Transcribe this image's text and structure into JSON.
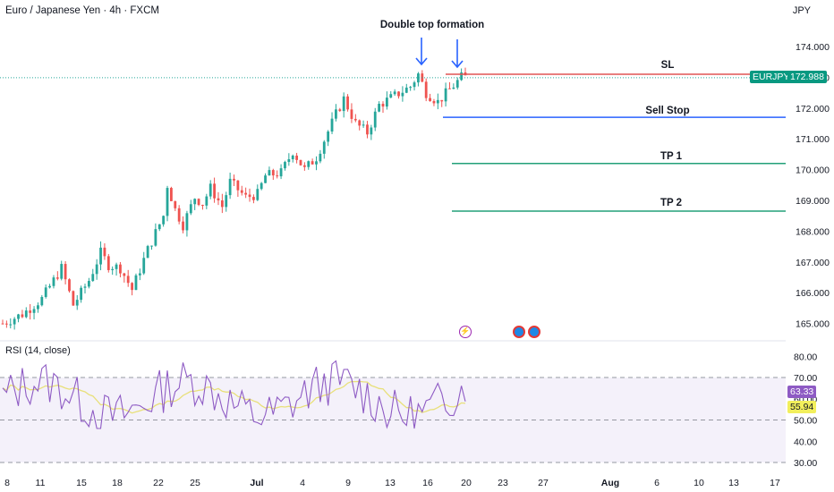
{
  "header": {
    "symbol_title": "Euro / Japanese Yen · 4h · FXCM",
    "currency": "JPY",
    "rsi_label": "RSI (14, close)"
  },
  "colors": {
    "up": "#26a69a",
    "down": "#ef5350",
    "sl_line": "#e05555",
    "sell_stop_line": "#2962ff",
    "tp_line": "#22a079",
    "rsi_line": "#8e5bc4",
    "rsi_ma": "#e8e07a",
    "rsi_band": "#ede7f6",
    "arrow": "#2962ff"
  },
  "annotations": {
    "double_top": "Double top formation",
    "sl": "SL",
    "sell_stop": "Sell Stop",
    "tp1": "TP 1",
    "tp2": "TP 2"
  },
  "price_badge": {
    "symbol": "EURJPY",
    "price": "172.988"
  },
  "rsi_badges": {
    "rsi": "63.33",
    "ma": "55.94"
  },
  "chart_data": {
    "type": "candlestick",
    "instrument": "EURJPY",
    "timeframe": "4h",
    "y_axis": {
      "ticks": [
        "174.000",
        "173.000",
        "172.000",
        "171.000",
        "170.000",
        "169.000",
        "168.000",
        "167.000",
        "166.000",
        "165.000"
      ],
      "range": [
        164.6,
        174.6
      ]
    },
    "x_axis": {
      "ticks": [
        "8",
        "11",
        "15",
        "18",
        "22",
        "25",
        "Jul",
        "4",
        "9",
        "13",
        "16",
        "20",
        "23",
        "27",
        "Aug",
        "6",
        "10",
        "13",
        "17"
      ]
    },
    "last_price": 172.988,
    "levels": [
      {
        "label": "SL",
        "price": 173.1
      },
      {
        "label": "Sell Stop",
        "price": 171.7
      },
      {
        "label": "TP 1",
        "price": 170.2
      },
      {
        "label": "TP 2",
        "price": 168.65
      }
    ],
    "close_path": [
      [
        0,
        165.0
      ],
      [
        5,
        165.3
      ],
      [
        10,
        165.8
      ],
      [
        15,
        166.8
      ],
      [
        18,
        165.6
      ],
      [
        22,
        166.4
      ],
      [
        25,
        167.3
      ],
      [
        27,
        166.9
      ],
      [
        30,
        166.8
      ],
      [
        33,
        166.1
      ],
      [
        37,
        167.4
      ],
      [
        41,
        168.5
      ],
      [
        42,
        169.5
      ],
      [
        44,
        168.7
      ],
      [
        46,
        168.2
      ],
      [
        49,
        169.1
      ],
      [
        51,
        168.9
      ],
      [
        53,
        169.4
      ],
      [
        56,
        168.8
      ],
      [
        58,
        169.6
      ],
      [
        62,
        169.1
      ],
      [
        65,
        169.2
      ],
      [
        67,
        169.8
      ],
      [
        71,
        169.9
      ],
      [
        74,
        170.6
      ],
      [
        77,
        170.0
      ],
      [
        80,
        170.4
      ],
      [
        85,
        171.8
      ],
      [
        87,
        172.3
      ],
      [
        90,
        171.5
      ],
      [
        93,
        171.2
      ],
      [
        96,
        172.1
      ],
      [
        100,
        172.4
      ],
      [
        104,
        172.7
      ],
      [
        106,
        173.1
      ],
      [
        108,
        172.5
      ],
      [
        111,
        172.2
      ],
      [
        114,
        172.6
      ],
      [
        117,
        173.0
      ],
      [
        118,
        173.0
      ]
    ],
    "rsi": {
      "ticks": [
        "80.00",
        "70.00",
        "60.00",
        "50.00",
        "40.00",
        "30.00"
      ],
      "upper_band": 70,
      "lower_band": 30,
      "middle": 50,
      "last": 63.33,
      "ma_last": 55.94
    }
  }
}
